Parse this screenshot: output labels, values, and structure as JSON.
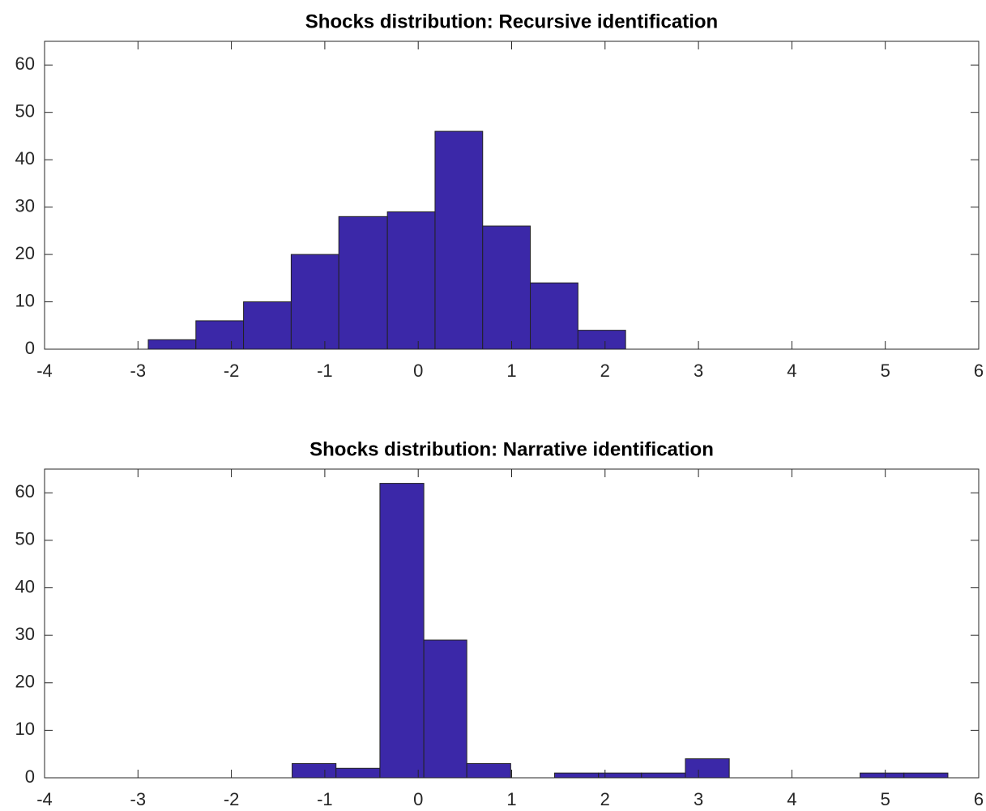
{
  "chart_data": [
    {
      "type": "histogram",
      "title": "Shocks distribution: Recursive identification",
      "bins": [
        -2.89,
        -2.38,
        -1.87,
        -1.36,
        -0.85,
        -0.33,
        0.18,
        0.69,
        1.2,
        1.71,
        2.22
      ],
      "values": [
        2,
        6,
        10,
        20,
        28,
        29,
        46,
        26,
        14,
        4
      ],
      "color": "#3b28a8",
      "xlim": [
        -4,
        6
      ],
      "xticks": [
        -4,
        -3,
        -2,
        -1,
        0,
        1,
        2,
        3,
        4,
        5,
        6
      ],
      "ylim": [
        0,
        65
      ],
      "yticks": [
        0,
        10,
        20,
        30,
        40,
        50,
        60
      ]
    },
    {
      "type": "histogram",
      "title": "Shocks distribution: Narrative identification",
      "bins": [
        -1.35,
        -0.88,
        -0.41,
        0.06,
        0.52,
        0.99,
        1.46,
        1.93,
        2.39,
        2.86,
        3.33,
        3.8,
        4.26,
        4.73,
        5.2,
        5.67
      ],
      "values": [
        3,
        2,
        62,
        29,
        3,
        0,
        1,
        1,
        1,
        4,
        0,
        0,
        0,
        1,
        1
      ],
      "color": "#3b28a8",
      "xlim": [
        -4,
        6
      ],
      "xticks": [
        -4,
        -3,
        -2,
        -1,
        0,
        1,
        2,
        3,
        4,
        5,
        6
      ],
      "ylim": [
        0,
        65
      ],
      "yticks": [
        0,
        10,
        20,
        30,
        40,
        50,
        60
      ]
    }
  ]
}
